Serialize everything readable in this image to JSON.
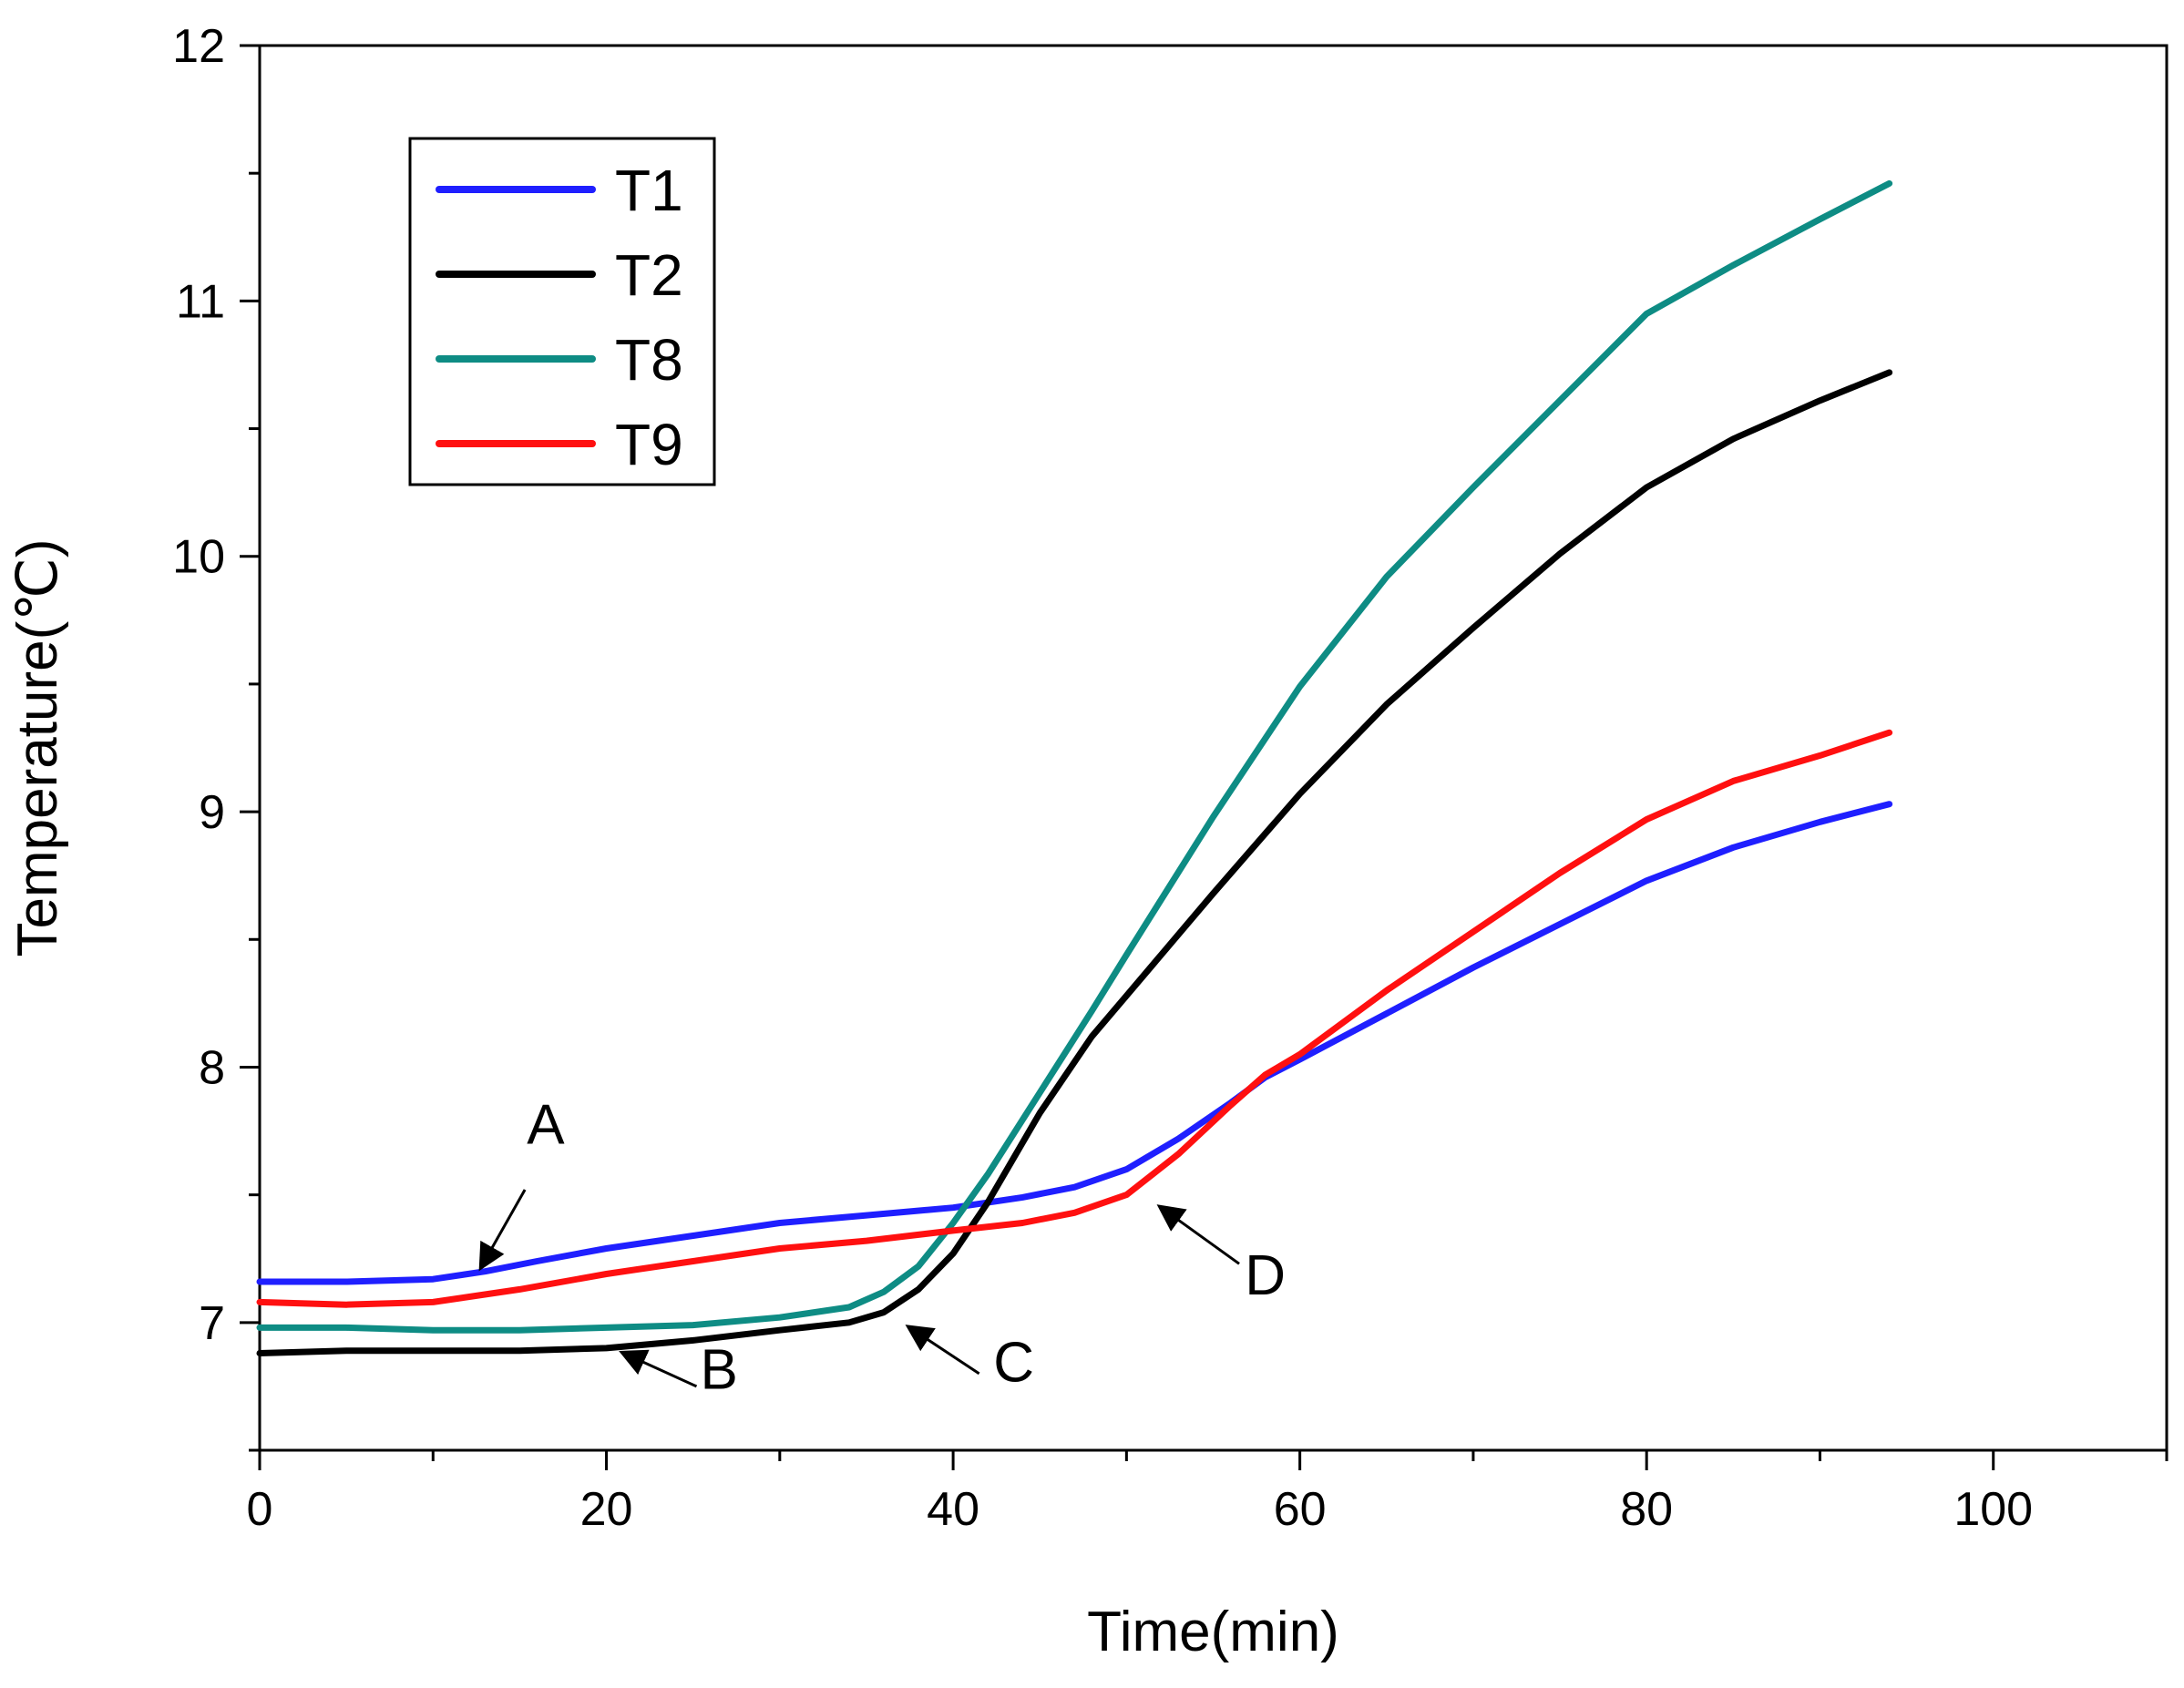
{
  "chart_data": {
    "type": "line",
    "xlabel": "Time(min)",
    "ylabel": "Temperature(℃)",
    "xlim": [
      0,
      110
    ],
    "ylim": [
      6.5,
      12
    ],
    "xticks": [
      0,
      20,
      40,
      60,
      80,
      100
    ],
    "yticks": [
      7,
      8,
      9,
      10,
      11,
      12
    ],
    "grid": false,
    "legend": {
      "position": "top-left",
      "entries": [
        "T1",
        "T2",
        "T8",
        "T9"
      ]
    },
    "series": [
      {
        "name": "T1",
        "color": "#1f1fff",
        "x": [
          0,
          5,
          10,
          13,
          16,
          20,
          25,
          30,
          35,
          40,
          44,
          47,
          50,
          53,
          56,
          58,
          60,
          65,
          70,
          75,
          80,
          85,
          90,
          94
        ],
        "y": [
          7.16,
          7.16,
          7.17,
          7.2,
          7.24,
          7.29,
          7.34,
          7.39,
          7.42,
          7.45,
          7.49,
          7.53,
          7.6,
          7.72,
          7.86,
          7.96,
          8.03,
          8.21,
          8.39,
          8.56,
          8.73,
          8.86,
          8.96,
          9.03
        ]
      },
      {
        "name": "T2",
        "color": "#000000",
        "x": [
          0,
          5,
          10,
          15,
          20,
          25,
          30,
          34,
          36,
          38,
          40,
          42,
          45,
          48,
          50,
          55,
          60,
          65,
          70,
          75,
          80,
          85,
          90,
          94
        ],
        "y": [
          6.88,
          6.89,
          6.89,
          6.89,
          6.9,
          6.93,
          6.97,
          7.0,
          7.04,
          7.13,
          7.27,
          7.47,
          7.82,
          8.12,
          8.28,
          8.68,
          9.07,
          9.42,
          9.72,
          10.01,
          10.27,
          10.46,
          10.61,
          10.72
        ]
      },
      {
        "name": "T8",
        "color": "#0e8c84",
        "x": [
          0,
          5,
          10,
          15,
          20,
          25,
          30,
          34,
          36,
          38,
          40,
          42,
          45,
          48,
          50,
          55,
          60,
          65,
          70,
          75,
          80,
          85,
          90,
          94
        ],
        "y": [
          6.98,
          6.98,
          6.97,
          6.97,
          6.98,
          6.99,
          7.02,
          7.06,
          7.12,
          7.22,
          7.39,
          7.58,
          7.9,
          8.22,
          8.44,
          8.98,
          9.49,
          9.92,
          10.27,
          10.61,
          10.95,
          11.14,
          11.32,
          11.46
        ]
      },
      {
        "name": "T9",
        "color": "#ff1010",
        "x": [
          0,
          5,
          10,
          15,
          20,
          25,
          30,
          35,
          40,
          44,
          47,
          50,
          53,
          56,
          58,
          60,
          65,
          70,
          75,
          80,
          85,
          90,
          94
        ],
        "y": [
          7.08,
          7.07,
          7.08,
          7.13,
          7.19,
          7.24,
          7.29,
          7.32,
          7.36,
          7.39,
          7.43,
          7.5,
          7.66,
          7.85,
          7.97,
          8.05,
          8.3,
          8.53,
          8.76,
          8.97,
          9.12,
          9.22,
          9.31
        ]
      }
    ],
    "annotations": [
      {
        "label": "A",
        "text_x": 16.5,
        "text_y": 7.7,
        "arrow_from": [
          15.3,
          7.52
        ],
        "arrow_to": [
          12.8,
          7.22
        ]
      },
      {
        "label": "B",
        "text_x": 26.5,
        "text_y": 6.74,
        "arrow_from": [
          25.2,
          6.75
        ],
        "arrow_to": [
          21.0,
          6.88
        ]
      },
      {
        "label": "C",
        "text_x": 43.5,
        "text_y": 6.77,
        "arrow_from": [
          41.5,
          6.8
        ],
        "arrow_to": [
          37.5,
          6.98
        ]
      },
      {
        "label": "D",
        "text_x": 58.0,
        "text_y": 7.11,
        "arrow_from": [
          56.5,
          7.23
        ],
        "arrow_to": [
          52.0,
          7.45
        ]
      }
    ]
  }
}
